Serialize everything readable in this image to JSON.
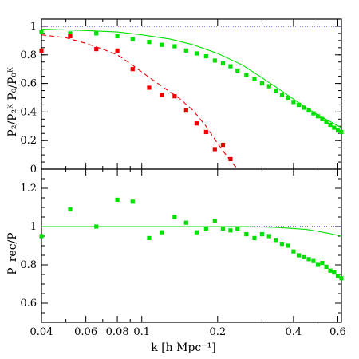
{
  "chart_data": [
    {
      "panel": "top",
      "type": "line+scatter",
      "xscale": "log",
      "xlim": [
        0.04,
        0.62
      ],
      "ylim": [
        0,
        1.05
      ],
      "y_ticks": [
        "0",
        "0.2",
        "0.4",
        "0.6",
        "0.8",
        "1"
      ],
      "reference_line": {
        "y": 1,
        "style": "dotted",
        "color": "#0000aa"
      },
      "series": [
        {
          "kind": "points",
          "color": "#00e000",
          "x": [
            0.04,
            0.052,
            0.066,
            0.08,
            0.092,
            0.107,
            0.12,
            0.135,
            0.15,
            0.165,
            0.18,
            0.195,
            0.21,
            0.225,
            0.24,
            0.26,
            0.28,
            0.3,
            0.32,
            0.34,
            0.36,
            0.38,
            0.4,
            0.42,
            0.44,
            0.46,
            0.48,
            0.5,
            0.52,
            0.54,
            0.56,
            0.58,
            0.6,
            0.62
          ],
          "y": [
            0.96,
            0.95,
            0.95,
            0.93,
            0.91,
            0.89,
            0.87,
            0.86,
            0.83,
            0.81,
            0.79,
            0.76,
            0.74,
            0.72,
            0.69,
            0.66,
            0.63,
            0.6,
            0.58,
            0.55,
            0.52,
            0.5,
            0.47,
            0.45,
            0.43,
            0.41,
            0.39,
            0.37,
            0.35,
            0.33,
            0.31,
            0.29,
            0.27,
            0.26
          ]
        },
        {
          "kind": "line",
          "style": "solid",
          "color": "#00e000",
          "x": [
            0.04,
            0.06,
            0.08,
            0.1,
            0.13,
            0.16,
            0.2,
            0.25,
            0.3,
            0.35,
            0.4,
            0.45,
            0.5,
            0.55,
            0.62
          ],
          "y": [
            0.98,
            0.97,
            0.96,
            0.94,
            0.91,
            0.87,
            0.81,
            0.73,
            0.64,
            0.56,
            0.49,
            0.43,
            0.38,
            0.34,
            0.29
          ]
        },
        {
          "kind": "points",
          "color": "#ee0000",
          "x": [
            0.04,
            0.052,
            0.066,
            0.08,
            0.092,
            0.107,
            0.12,
            0.135,
            0.15,
            0.165,
            0.18,
            0.195,
            0.21,
            0.225
          ],
          "y": [
            0.83,
            0.93,
            0.84,
            0.83,
            0.7,
            0.57,
            0.52,
            0.51,
            0.41,
            0.32,
            0.26,
            0.14,
            0.17,
            0.07
          ]
        },
        {
          "kind": "line",
          "style": "dashed",
          "color": "#ee0000",
          "x": [
            0.04,
            0.05,
            0.06,
            0.07,
            0.08,
            0.09,
            0.1,
            0.12,
            0.14,
            0.16,
            0.18,
            0.2,
            0.22,
            0.24
          ],
          "y": [
            0.94,
            0.92,
            0.88,
            0.84,
            0.8,
            0.74,
            0.68,
            0.58,
            0.5,
            0.41,
            0.3,
            0.18,
            0.08,
            0.0
          ]
        }
      ]
    },
    {
      "panel": "bottom",
      "type": "line+scatter",
      "xscale": "log",
      "xlim": [
        0.04,
        0.62
      ],
      "ylim": [
        0.5,
        1.3
      ],
      "y_ticks": [
        "0.6",
        "0.8",
        "1",
        "1.2"
      ],
      "x_ticks": [
        "0.04",
        "0.06",
        "0.08",
        "0.1",
        "0.2",
        "0.4",
        "0.6"
      ],
      "reference_line": {
        "y": 1,
        "style": "dotted",
        "color": "#0000aa"
      },
      "series": [
        {
          "kind": "points",
          "color": "#00e000",
          "x": [
            0.04,
            0.052,
            0.066,
            0.08,
            0.092,
            0.107,
            0.12,
            0.135,
            0.15,
            0.165,
            0.18,
            0.195,
            0.21,
            0.225,
            0.24,
            0.26,
            0.28,
            0.3,
            0.32,
            0.34,
            0.36,
            0.38,
            0.4,
            0.42,
            0.44,
            0.46,
            0.48,
            0.5,
            0.52,
            0.54,
            0.56,
            0.58,
            0.6,
            0.62
          ],
          "y": [
            0.95,
            1.09,
            1.0,
            1.14,
            1.13,
            0.94,
            0.97,
            1.05,
            1.02,
            0.97,
            0.99,
            1.03,
            0.99,
            0.98,
            0.99,
            0.96,
            0.94,
            0.96,
            0.95,
            0.93,
            0.91,
            0.9,
            0.87,
            0.85,
            0.84,
            0.83,
            0.82,
            0.8,
            0.81,
            0.79,
            0.77,
            0.76,
            0.74,
            0.73
          ]
        },
        {
          "kind": "line",
          "style": "solid",
          "color": "#00e000",
          "x": [
            0.04,
            0.08,
            0.12,
            0.16,
            0.2,
            0.25,
            0.3,
            0.35,
            0.4,
            0.45,
            0.5,
            0.55,
            0.62
          ],
          "y": [
            1.0,
            1.0,
            1.0,
            1.0,
            1.0,
            1.0,
            0.998,
            0.995,
            0.99,
            0.985,
            0.975,
            0.965,
            0.95
          ]
        }
      ]
    }
  ],
  "labels": {
    "top_ylabel": "P₂/P₂ᴷ     P₀/P₀ᴷ",
    "bottom_ylabel": "P_rec/P",
    "xlabel": "k [h Mpc⁻¹]"
  }
}
